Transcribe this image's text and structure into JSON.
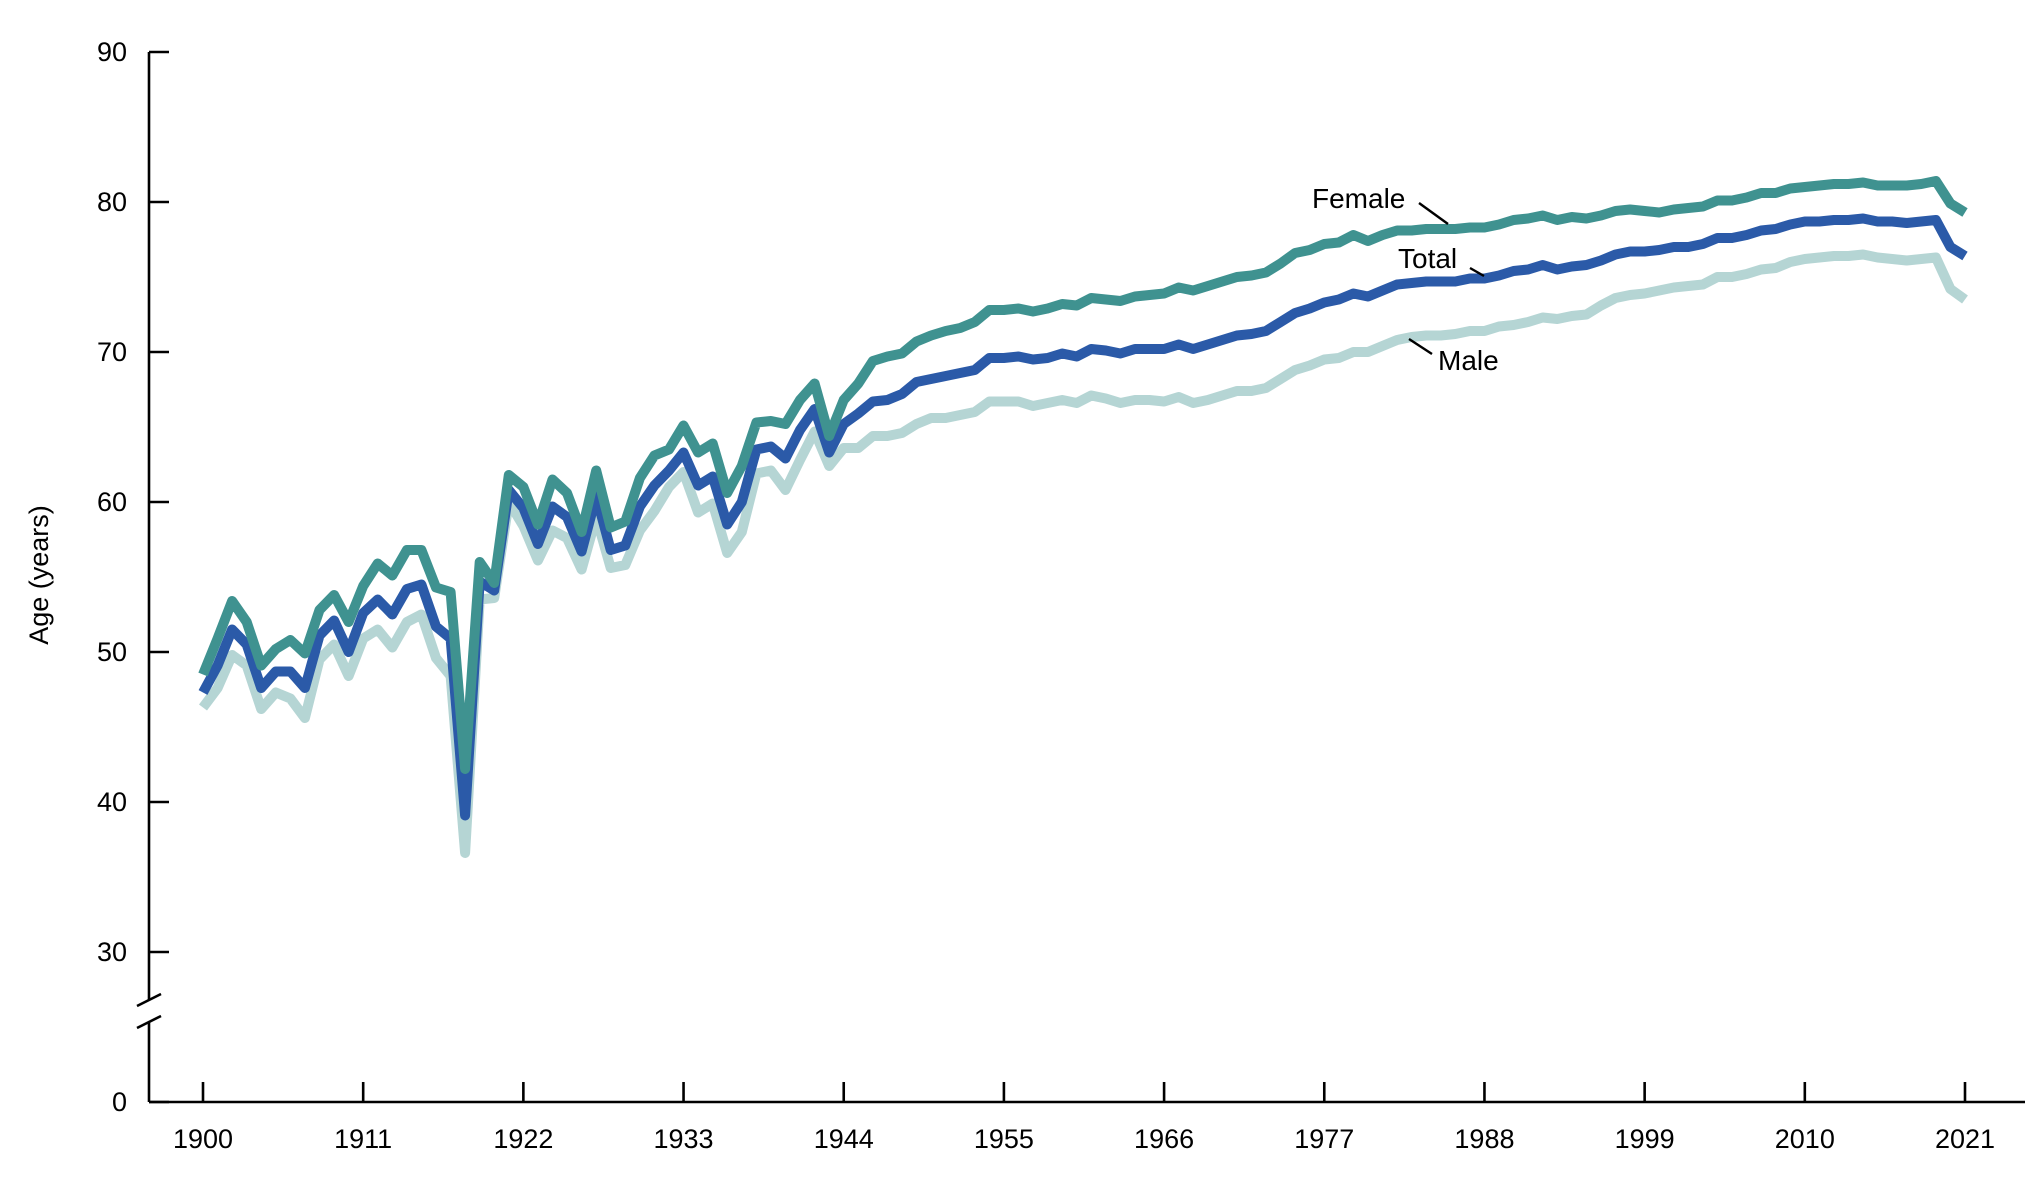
{
  "chart_data": {
    "type": "line",
    "title": "",
    "xlabel": "",
    "ylabel": "Age (years)",
    "x_ticks": [
      "1900",
      "1911",
      "1922",
      "1933",
      "1944",
      "1955",
      "1966",
      "1977",
      "1988",
      "1999",
      "2010",
      "2021"
    ],
    "y_ticks": [
      "0",
      "30",
      "40",
      "50",
      "60",
      "70",
      "80",
      "90"
    ],
    "ylim_upper": [
      30,
      90
    ],
    "ylim_lower": [
      0,
      0
    ],
    "axis_break": true,
    "x": [
      1900,
      1901,
      1902,
      1903,
      1904,
      1905,
      1906,
      1907,
      1908,
      1909,
      1910,
      1911,
      1912,
      1913,
      1914,
      1915,
      1916,
      1917,
      1918,
      1919,
      1920,
      1921,
      1922,
      1923,
      1924,
      1925,
      1926,
      1927,
      1928,
      1929,
      1930,
      1931,
      1932,
      1933,
      1934,
      1935,
      1936,
      1937,
      1938,
      1939,
      1940,
      1941,
      1942,
      1943,
      1944,
      1945,
      1946,
      1947,
      1948,
      1949,
      1950,
      1951,
      1952,
      1953,
      1954,
      1955,
      1956,
      1957,
      1958,
      1959,
      1960,
      1961,
      1962,
      1963,
      1964,
      1965,
      1966,
      1967,
      1968,
      1969,
      1970,
      1971,
      1972,
      1973,
      1974,
      1975,
      1976,
      1977,
      1978,
      1979,
      1980,
      1981,
      1982,
      1983,
      1984,
      1985,
      1986,
      1987,
      1988,
      1989,
      1990,
      1991,
      1992,
      1993,
      1994,
      1995,
      1996,
      1997,
      1998,
      1999,
      2000,
      2001,
      2002,
      2003,
      2004,
      2005,
      2006,
      2007,
      2008,
      2009,
      2010,
      2011,
      2012,
      2013,
      2014,
      2015,
      2016,
      2017,
      2018,
      2019,
      2020,
      2021
    ],
    "series": [
      {
        "name": "Female",
        "color": "#3f9290",
        "values": [
          48.5,
          50.9,
          53.4,
          52.0,
          49.1,
          50.2,
          50.8,
          49.9,
          52.8,
          53.8,
          52.0,
          54.4,
          55.9,
          55.1,
          56.8,
          56.8,
          54.3,
          54.0,
          42.2,
          56.0,
          54.6,
          61.8,
          61.0,
          58.5,
          61.5,
          60.6,
          58.0,
          62.1,
          58.3,
          58.7,
          61.6,
          63.1,
          63.5,
          65.1,
          63.3,
          63.9,
          60.6,
          62.4,
          65.3,
          65.4,
          65.2,
          66.8,
          67.9,
          64.4,
          66.8,
          67.9,
          69.4,
          69.7,
          69.9,
          70.7,
          71.1,
          71.4,
          71.6,
          72.0,
          72.8,
          72.8,
          72.9,
          72.7,
          72.9,
          73.2,
          73.1,
          73.6,
          73.5,
          73.4,
          73.7,
          73.8,
          73.9,
          74.3,
          74.1,
          74.4,
          74.7,
          75.0,
          75.1,
          75.3,
          75.9,
          76.6,
          76.8,
          77.2,
          77.3,
          77.8,
          77.4,
          77.8,
          78.1,
          78.1,
          78.2,
          78.2,
          78.2,
          78.3,
          78.3,
          78.5,
          78.8,
          78.9,
          79.1,
          78.8,
          79.0,
          78.9,
          79.1,
          79.4,
          79.5,
          79.4,
          79.3,
          79.5,
          79.6,
          79.7,
          80.1,
          80.1,
          80.3,
          80.6,
          80.6,
          80.9,
          81.0,
          81.1,
          81.2,
          81.2,
          81.3,
          81.1,
          81.1,
          81.1,
          81.2,
          81.4,
          79.9,
          79.3
        ]
      },
      {
        "name": "Total",
        "color": "#2b5aa8",
        "values": [
          47.3,
          49.1,
          51.5,
          50.5,
          47.6,
          48.7,
          48.7,
          47.6,
          51.1,
          52.1,
          50.0,
          52.6,
          53.5,
          52.5,
          54.2,
          54.5,
          51.7,
          50.9,
          39.1,
          54.7,
          54.1,
          60.8,
          59.6,
          57.2,
          59.7,
          59.0,
          56.7,
          60.4,
          56.8,
          57.1,
          59.7,
          61.1,
          62.1,
          63.3,
          61.1,
          61.7,
          58.5,
          60.0,
          63.5,
          63.7,
          62.9,
          64.8,
          66.2,
          63.3,
          65.2,
          65.9,
          66.7,
          66.8,
          67.2,
          68.0,
          68.2,
          68.4,
          68.6,
          68.8,
          69.6,
          69.6,
          69.7,
          69.5,
          69.6,
          69.9,
          69.7,
          70.2,
          70.1,
          69.9,
          70.2,
          70.2,
          70.2,
          70.5,
          70.2,
          70.5,
          70.8,
          71.1,
          71.2,
          71.4,
          72.0,
          72.6,
          72.9,
          73.3,
          73.5,
          73.9,
          73.7,
          74.1,
          74.5,
          74.6,
          74.7,
          74.7,
          74.7,
          74.9,
          74.9,
          75.1,
          75.4,
          75.5,
          75.8,
          75.5,
          75.7,
          75.8,
          76.1,
          76.5,
          76.7,
          76.7,
          76.8,
          77.0,
          77.0,
          77.2,
          77.6,
          77.6,
          77.8,
          78.1,
          78.2,
          78.5,
          78.7,
          78.7,
          78.8,
          78.8,
          78.9,
          78.7,
          78.7,
          78.6,
          78.7,
          78.8,
          77.0,
          76.4
        ]
      },
      {
        "name": "Male",
        "color": "#b5d5d4",
        "values": [
          46.3,
          47.6,
          49.8,
          49.1,
          46.2,
          47.3,
          46.9,
          45.6,
          49.5,
          50.5,
          48.4,
          50.9,
          51.5,
          50.3,
          52.0,
          52.5,
          49.6,
          48.4,
          36.6,
          53.5,
          53.6,
          60.0,
          58.4,
          56.1,
          58.1,
          57.6,
          55.5,
          59.0,
          55.6,
          55.8,
          58.1,
          59.4,
          61.0,
          62.0,
          59.3,
          59.9,
          56.6,
          58.0,
          61.9,
          62.1,
          60.8,
          62.8,
          64.7,
          62.4,
          63.6,
          63.6,
          64.4,
          64.4,
          64.6,
          65.2,
          65.6,
          65.6,
          65.8,
          66.0,
          66.7,
          66.7,
          66.7,
          66.4,
          66.6,
          66.8,
          66.6,
          67.1,
          66.9,
          66.6,
          66.8,
          66.8,
          66.7,
          67.0,
          66.6,
          66.8,
          67.1,
          67.4,
          67.4,
          67.6,
          68.2,
          68.8,
          69.1,
          69.5,
          69.6,
          70.0,
          70.0,
          70.4,
          70.8,
          71.0,
          71.1,
          71.1,
          71.2,
          71.4,
          71.4,
          71.7,
          71.8,
          72.0,
          72.3,
          72.2,
          72.4,
          72.5,
          73.1,
          73.6,
          73.8,
          73.9,
          74.1,
          74.3,
          74.4,
          74.5,
          75.0,
          75.0,
          75.2,
          75.5,
          75.6,
          76.0,
          76.2,
          76.3,
          76.4,
          76.4,
          76.5,
          76.3,
          76.2,
          76.1,
          76.2,
          76.3,
          74.2,
          73.5
        ]
      }
    ],
    "labels": {
      "Female": "Female",
      "Total": "Total",
      "Male": "Male"
    },
    "grid": false,
    "legend": "inline labels with leader lines"
  }
}
